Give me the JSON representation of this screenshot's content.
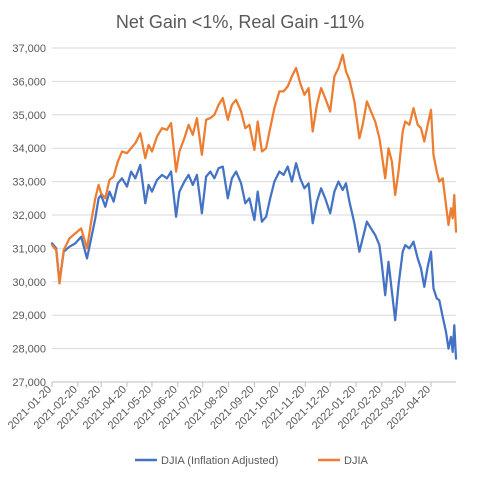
{
  "chart_data": {
    "type": "line",
    "title": "Net Gain <1%, Real Gain -11%",
    "xlabel": "",
    "ylabel": "",
    "ylim": [
      27000,
      37000
    ],
    "yticks": [
      27000,
      28000,
      29000,
      30000,
      31000,
      32000,
      33000,
      34000,
      35000,
      36000,
      37000
    ],
    "ytick_labels": [
      "27,000",
      "28,000",
      "29,000",
      "30,000",
      "31,000",
      "32,000",
      "33,000",
      "34,000",
      "35,000",
      "36,000",
      "37,000"
    ],
    "xticks": [
      "2021-01-20",
      "2021-02-20",
      "2021-03-20",
      "2021-04-20",
      "2021-05-20",
      "2021-06-20",
      "2021-07-20",
      "2021-08-20",
      "2021-09-20",
      "2021-10-20",
      "2021-11-20",
      "2021-12-20",
      "2022-01-20",
      "2022-02-20",
      "2022-03-20",
      "2022-04-20"
    ],
    "xlim": [
      "2021-01-20",
      "2022-05-20"
    ],
    "grid": true,
    "legend_position": "bottom",
    "series": [
      {
        "name": "DJIA (Inflation Adjusted)",
        "color": "#4472C4",
        "points": [
          [
            "2021-01-20",
            31150
          ],
          [
            "2021-01-25",
            31000
          ],
          [
            "2021-01-29",
            30000
          ],
          [
            "2021-02-03",
            30900
          ],
          [
            "2021-02-10",
            31050
          ],
          [
            "2021-02-17",
            31150
          ],
          [
            "2021-02-24",
            31350
          ],
          [
            "2021-03-03",
            30700
          ],
          [
            "2021-03-08",
            31300
          ],
          [
            "2021-03-13",
            31900
          ],
          [
            "2021-03-17",
            32500
          ],
          [
            "2021-03-20",
            32600
          ],
          [
            "2021-03-25",
            32250
          ],
          [
            "2021-03-30",
            32700
          ],
          [
            "2021-04-04",
            32400
          ],
          [
            "2021-04-09",
            32950
          ],
          [
            "2021-04-14",
            33100
          ],
          [
            "2021-04-20",
            32850
          ],
          [
            "2021-04-25",
            33300
          ],
          [
            "2021-04-30",
            33100
          ],
          [
            "2021-05-06",
            33500
          ],
          [
            "2021-05-12",
            32350
          ],
          [
            "2021-05-16",
            32900
          ],
          [
            "2021-05-20",
            32700
          ],
          [
            "2021-05-26",
            33050
          ],
          [
            "2021-06-01",
            33200
          ],
          [
            "2021-06-07",
            33100
          ],
          [
            "2021-06-12",
            33300
          ],
          [
            "2021-06-18",
            31950
          ],
          [
            "2021-06-22",
            32700
          ],
          [
            "2021-06-28",
            33000
          ],
          [
            "2021-07-03",
            33200
          ],
          [
            "2021-07-08",
            32900
          ],
          [
            "2021-07-13",
            33200
          ],
          [
            "2021-07-19",
            32050
          ],
          [
            "2021-07-24",
            33150
          ],
          [
            "2021-07-29",
            33300
          ],
          [
            "2021-08-03",
            33100
          ],
          [
            "2021-08-08",
            33400
          ],
          [
            "2021-08-13",
            33450
          ],
          [
            "2021-08-19",
            32500
          ],
          [
            "2021-08-24",
            33100
          ],
          [
            "2021-08-29",
            33300
          ],
          [
            "2021-09-04",
            32950
          ],
          [
            "2021-09-09",
            32350
          ],
          [
            "2021-09-14",
            32500
          ],
          [
            "2021-09-20",
            31850
          ],
          [
            "2021-09-24",
            32700
          ],
          [
            "2021-09-29",
            31800
          ],
          [
            "2021-10-04",
            31950
          ],
          [
            "2021-10-09",
            32500
          ],
          [
            "2021-10-14",
            33000
          ],
          [
            "2021-10-20",
            33300
          ],
          [
            "2021-10-25",
            33200
          ],
          [
            "2021-10-30",
            33450
          ],
          [
            "2021-11-04",
            33000
          ],
          [
            "2021-11-09",
            33550
          ],
          [
            "2021-11-14",
            33100
          ],
          [
            "2021-11-19",
            32800
          ],
          [
            "2021-11-24",
            32950
          ],
          [
            "2021-11-29",
            31750
          ],
          [
            "2021-12-04",
            32400
          ],
          [
            "2021-12-09",
            32800
          ],
          [
            "2021-12-14",
            32500
          ],
          [
            "2021-12-20",
            32050
          ],
          [
            "2021-12-25",
            32700
          ],
          [
            "2021-12-30",
            33000
          ],
          [
            "2022-01-04",
            32750
          ],
          [
            "2022-01-08",
            32950
          ],
          [
            "2022-01-12",
            32400
          ],
          [
            "2022-01-18",
            31750
          ],
          [
            "2022-01-24",
            30900
          ],
          [
            "2022-01-28",
            31300
          ],
          [
            "2022-02-02",
            31800
          ],
          [
            "2022-02-07",
            31600
          ],
          [
            "2022-02-12",
            31400
          ],
          [
            "2022-02-17",
            31100
          ],
          [
            "2022-02-20",
            30500
          ],
          [
            "2022-02-24",
            29600
          ],
          [
            "2022-02-28",
            30600
          ],
          [
            "2022-03-04",
            29700
          ],
          [
            "2022-03-08",
            28850
          ],
          [
            "2022-03-12",
            29900
          ],
          [
            "2022-03-17",
            30900
          ],
          [
            "2022-03-20",
            31100
          ],
          [
            "2022-03-25",
            31000
          ],
          [
            "2022-03-30",
            31200
          ],
          [
            "2022-04-04",
            30700
          ],
          [
            "2022-04-08",
            30400
          ],
          [
            "2022-04-12",
            29850
          ],
          [
            "2022-04-16",
            30450
          ],
          [
            "2022-04-20",
            30900
          ],
          [
            "2022-04-23",
            29800
          ],
          [
            "2022-04-27",
            29500
          ],
          [
            "2022-04-30",
            29450
          ],
          [
            "2022-05-04",
            28950
          ],
          [
            "2022-05-08",
            28500
          ],
          [
            "2022-05-11",
            28000
          ],
          [
            "2022-05-14",
            28350
          ],
          [
            "2022-05-16",
            27900
          ],
          [
            "2022-05-18",
            28700
          ],
          [
            "2022-05-20",
            27700
          ]
        ]
      },
      {
        "name": "DJIA",
        "color": "#ED7D31",
        "points": [
          [
            "2021-01-20",
            31100
          ],
          [
            "2021-01-25",
            30950
          ],
          [
            "2021-01-29",
            29950
          ],
          [
            "2021-02-03",
            30950
          ],
          [
            "2021-02-10",
            31300
          ],
          [
            "2021-02-17",
            31450
          ],
          [
            "2021-02-24",
            31600
          ],
          [
            "2021-03-03",
            31000
          ],
          [
            "2021-03-08",
            31800
          ],
          [
            "2021-03-13",
            32500
          ],
          [
            "2021-03-17",
            32900
          ],
          [
            "2021-03-20",
            32650
          ],
          [
            "2021-03-25",
            32500
          ],
          [
            "2021-03-30",
            33050
          ],
          [
            "2021-04-04",
            33150
          ],
          [
            "2021-04-09",
            33600
          ],
          [
            "2021-04-14",
            33900
          ],
          [
            "2021-04-20",
            33850
          ],
          [
            "2021-04-25",
            34000
          ],
          [
            "2021-04-30",
            34150
          ],
          [
            "2021-05-06",
            34450
          ],
          [
            "2021-05-12",
            33700
          ],
          [
            "2021-05-16",
            34100
          ],
          [
            "2021-05-20",
            33900
          ],
          [
            "2021-05-26",
            34350
          ],
          [
            "2021-06-01",
            34600
          ],
          [
            "2021-06-07",
            34550
          ],
          [
            "2021-06-12",
            34750
          ],
          [
            "2021-06-18",
            33300
          ],
          [
            "2021-06-22",
            33900
          ],
          [
            "2021-06-28",
            34300
          ],
          [
            "2021-07-03",
            34700
          ],
          [
            "2021-07-08",
            34400
          ],
          [
            "2021-07-13",
            34900
          ],
          [
            "2021-07-19",
            33800
          ],
          [
            "2021-07-24",
            34850
          ],
          [
            "2021-07-29",
            34900
          ],
          [
            "2021-08-03",
            35000
          ],
          [
            "2021-08-08",
            35300
          ],
          [
            "2021-08-13",
            35500
          ],
          [
            "2021-08-19",
            34850
          ],
          [
            "2021-08-24",
            35300
          ],
          [
            "2021-08-29",
            35450
          ],
          [
            "2021-09-04",
            35100
          ],
          [
            "2021-09-09",
            34600
          ],
          [
            "2021-09-14",
            34700
          ],
          [
            "2021-09-20",
            33950
          ],
          [
            "2021-09-24",
            34800
          ],
          [
            "2021-09-29",
            33900
          ],
          [
            "2021-10-04",
            34000
          ],
          [
            "2021-10-09",
            34600
          ],
          [
            "2021-10-14",
            35200
          ],
          [
            "2021-10-20",
            35700
          ],
          [
            "2021-10-25",
            35700
          ],
          [
            "2021-10-30",
            35850
          ],
          [
            "2021-11-04",
            36150
          ],
          [
            "2021-11-09",
            36400
          ],
          [
            "2021-11-14",
            35950
          ],
          [
            "2021-11-19",
            35600
          ],
          [
            "2021-11-24",
            35800
          ],
          [
            "2021-11-29",
            34500
          ],
          [
            "2021-12-04",
            35300
          ],
          [
            "2021-12-09",
            35800
          ],
          [
            "2021-12-14",
            35500
          ],
          [
            "2021-12-20",
            35100
          ],
          [
            "2021-12-25",
            36150
          ],
          [
            "2021-12-30",
            36400
          ],
          [
            "2022-01-04",
            36800
          ],
          [
            "2022-01-08",
            36300
          ],
          [
            "2022-01-12",
            36050
          ],
          [
            "2022-01-18",
            35400
          ],
          [
            "2022-01-24",
            34300
          ],
          [
            "2022-01-28",
            34700
          ],
          [
            "2022-02-02",
            35400
          ],
          [
            "2022-02-07",
            35100
          ],
          [
            "2022-02-12",
            34800
          ],
          [
            "2022-02-17",
            34300
          ],
          [
            "2022-02-20",
            33800
          ],
          [
            "2022-02-24",
            33100
          ],
          [
            "2022-02-28",
            34000
          ],
          [
            "2022-03-04",
            33600
          ],
          [
            "2022-03-08",
            32600
          ],
          [
            "2022-03-12",
            33300
          ],
          [
            "2022-03-17",
            34500
          ],
          [
            "2022-03-20",
            34800
          ],
          [
            "2022-03-25",
            34700
          ],
          [
            "2022-03-30",
            35200
          ],
          [
            "2022-04-04",
            34700
          ],
          [
            "2022-04-08",
            34600
          ],
          [
            "2022-04-12",
            34200
          ],
          [
            "2022-04-16",
            34700
          ],
          [
            "2022-04-20",
            35150
          ],
          [
            "2022-04-23",
            33800
          ],
          [
            "2022-04-27",
            33300
          ],
          [
            "2022-04-30",
            33000
          ],
          [
            "2022-05-04",
            33100
          ],
          [
            "2022-05-08",
            32300
          ],
          [
            "2022-05-11",
            31700
          ],
          [
            "2022-05-14",
            32200
          ],
          [
            "2022-05-16",
            31900
          ],
          [
            "2022-05-18",
            32600
          ],
          [
            "2022-05-20",
            31500
          ]
        ]
      }
    ]
  }
}
